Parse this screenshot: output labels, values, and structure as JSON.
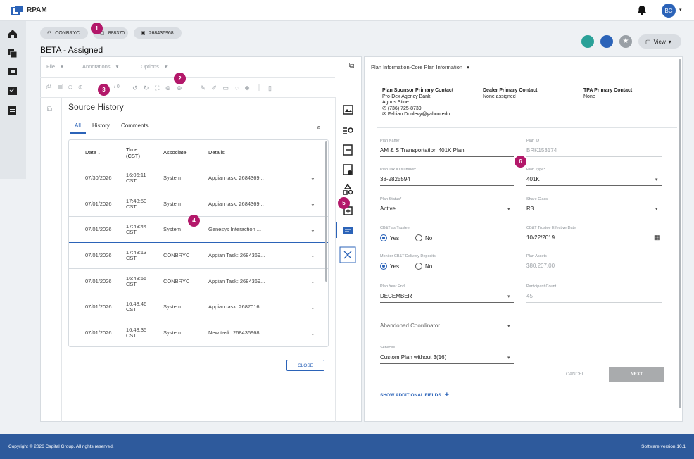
{
  "header": {
    "app_name": "RPAM",
    "avatar": "BC"
  },
  "chips": [
    "CONBRYC",
    "888370",
    "268436968"
  ],
  "badges": [
    "1",
    "2",
    "3",
    "4",
    "5",
    "6"
  ],
  "title": "BETA - Assigned",
  "view_button": "View",
  "viewer": {
    "menus": [
      "File",
      "Annotations",
      "Options"
    ],
    "page_count": "/ 0"
  },
  "source_history": {
    "title": "Source History",
    "tabs": [
      "All",
      "History",
      "Comments"
    ],
    "selected_tab": 0,
    "columns": [
      "Date ↓",
      "Time (CST)",
      "Associate",
      "Details"
    ],
    "rows": [
      [
        "07/30/2026",
        "16:06:11 CST",
        "System",
        "Appian task: 2684369..."
      ],
      [
        "07/01/2026",
        "17:48:50 CST",
        "System",
        "Appian task: 2684369..."
      ],
      [
        "07/01/2026",
        "17:48:44 CST",
        "System",
        "Genesys Interaction ..."
      ],
      [
        "07/01/2026",
        "17:48:13 CST",
        "CONBRYC",
        "Appian Task: 2684369..."
      ],
      [
        "07/01/2026",
        "16:48:55 CST",
        "CONBRYC",
        "Appian Task: 2684369..."
      ],
      [
        "07/01/2026",
        "16:48:46 CST",
        "System",
        "Appian task: 2687016..."
      ],
      [
        "07/01/2026",
        "16:48:35 CST",
        "System",
        "New task: 268436968 ..."
      ]
    ],
    "close": "CLOSE"
  },
  "plan": {
    "section_title": "Plan Information-Core Plan Information",
    "contacts": [
      {
        "heading": "Plan Sponsor Primary Contact",
        "lines": [
          "Pro-Dex Agency Bank",
          "Agnus Stine",
          "(736) 725-8739",
          "Fabian.Dunlevy@yahoo.edu"
        ]
      },
      {
        "heading": "Dealer Primary Contact",
        "lines": [
          "None assigned"
        ]
      },
      {
        "heading": "TPA Primary Contact",
        "lines": [
          "None"
        ]
      }
    ],
    "fields": [
      {
        "label": "Plan Name*",
        "value": "AM & S Transportation 401K Plan",
        "kind": "text"
      },
      {
        "label": "Plan ID",
        "value": "BRK153174",
        "kind": "disabled"
      },
      {
        "label": "Plan Tax ID Number*",
        "value": "38-2825594",
        "kind": "text"
      },
      {
        "label": "Plan Type*",
        "value": "401K",
        "kind": "select"
      },
      {
        "label": "Plan Status*",
        "value": "Active",
        "kind": "select"
      },
      {
        "label": "Share Class",
        "value": "R3",
        "kind": "select"
      },
      {
        "label": "CB&T as Trustee",
        "options": [
          "Yes",
          "No"
        ],
        "selected": 0,
        "kind": "radio"
      },
      {
        "label": "CB&T Trustee Effective Date",
        "value": "10/22/2019",
        "kind": "date"
      },
      {
        "label": "Monitor CB&T Delivery Deposits",
        "options": [
          "Yes",
          "No"
        ],
        "selected": 0,
        "kind": "radio"
      },
      {
        "label": "Plan Assets",
        "value": "$80,207.00",
        "kind": "disabled"
      },
      {
        "label": "Plan Year End",
        "value": "DECEMBER",
        "kind": "select"
      },
      {
        "label": "Participant Count",
        "value": "45",
        "kind": "disabled"
      },
      {
        "value": "Abandoned Coordinator",
        "kind": "placeholder"
      },
      {
        "label": "Services",
        "value": "Custom Plan without 3(16)",
        "kind": "select"
      }
    ],
    "cancel": "CANCEL",
    "next": "NEXT",
    "show_more": "SHOW ADDITIONAL FIELDS"
  },
  "footer": {
    "copyright": "Copyright © 2026 Capital Group, All rights reserved.",
    "version": "Software version 10.1"
  }
}
